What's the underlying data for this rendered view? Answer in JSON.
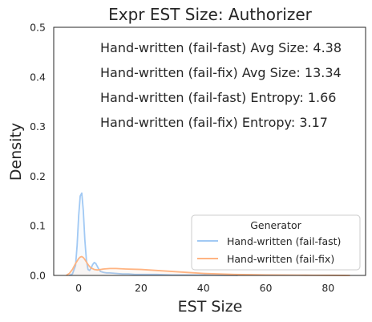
{
  "chart_data": {
    "type": "area",
    "title": "Expr EST Size: Authorizer",
    "xlabel": "EST Size",
    "ylabel": "Density",
    "xlim": [
      -8,
      92
    ],
    "ylim": [
      0,
      0.5
    ],
    "x_ticks": [
      0,
      20,
      40,
      60,
      80
    ],
    "y_ticks": [
      0.0,
      0.1,
      0.2,
      0.3,
      0.4,
      0.5
    ],
    "grid": false,
    "legend": {
      "title": "Generator",
      "placement": "lower-right"
    },
    "annotations": [
      "Hand-written (fail-fast) Avg Size: 4.38",
      "Hand-written (fail-fix) Avg Size: 13.34",
      "Hand-written (fail-fast) Entropy: 1.66",
      "Hand-written (fail-fix) Entropy: 3.17"
    ],
    "series": [
      {
        "name": "Hand-written (fail-fast)",
        "color": "#a1c9f4",
        "x": [
          -3,
          -2,
          -1,
          -0.5,
          0,
          0.5,
          1,
          1.5,
          2,
          2.5,
          3,
          3.5,
          4,
          4.5,
          5,
          5.5,
          6,
          6.5,
          7,
          8,
          9,
          10,
          12,
          14,
          16,
          18,
          20,
          25,
          30,
          35,
          40,
          45,
          50,
          51
        ],
        "y": [
          0.0,
          0.003,
          0.02,
          0.06,
          0.12,
          0.16,
          0.166,
          0.13,
          0.07,
          0.03,
          0.012,
          0.01,
          0.015,
          0.022,
          0.026,
          0.024,
          0.018,
          0.012,
          0.008,
          0.006,
          0.005,
          0.005,
          0.004,
          0.003,
          0.003,
          0.002,
          0.002,
          0.002,
          0.001,
          0.001,
          0.001,
          0.0005,
          0.0003,
          0.0
        ]
      },
      {
        "name": "Hand-written (fail-fix)",
        "color": "#ffb482",
        "x": [
          -4,
          -3,
          -2,
          -1,
          0,
          0.5,
          1,
          1.5,
          2,
          2.5,
          3,
          3.5,
          4,
          5,
          6,
          7,
          8,
          10,
          12,
          15,
          20,
          25,
          30,
          35,
          40,
          45,
          50,
          55,
          60,
          65,
          70,
          75,
          80,
          85,
          87
        ],
        "y": [
          0.0,
          0.004,
          0.012,
          0.024,
          0.034,
          0.037,
          0.038,
          0.036,
          0.032,
          0.027,
          0.022,
          0.018,
          0.015,
          0.012,
          0.011,
          0.012,
          0.013,
          0.014,
          0.014,
          0.013,
          0.012,
          0.01,
          0.008,
          0.006,
          0.004,
          0.003,
          0.002,
          0.0015,
          0.001,
          0.0008,
          0.0006,
          0.0004,
          0.0003,
          0.0001,
          0.0
        ]
      }
    ]
  }
}
